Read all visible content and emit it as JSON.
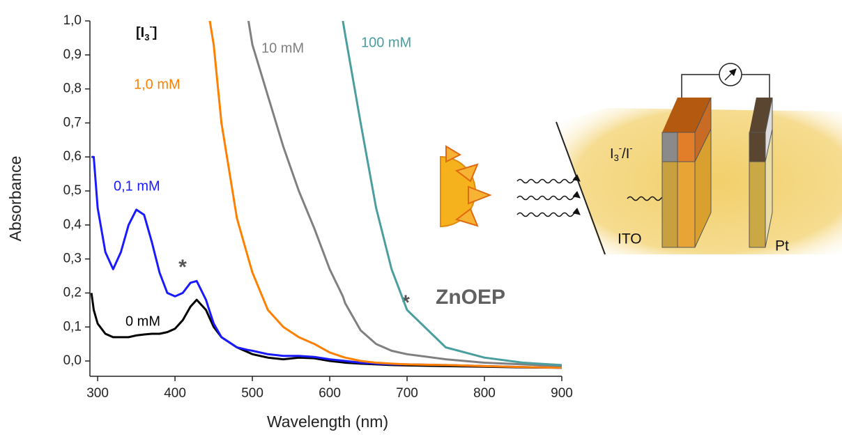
{
  "chart_data": {
    "type": "line",
    "x_label": "Wavelength (nm)",
    "y_label": "Absorbance",
    "legend_title": {
      "base": "[I",
      "sub": "3",
      "sup": "-",
      "end": "]"
    },
    "x": [
      292,
      295,
      300,
      310,
      320,
      330,
      340,
      350,
      360,
      370,
      380,
      390,
      400,
      410,
      420,
      428,
      440,
      445,
      450,
      460,
      480,
      495,
      500,
      520,
      540,
      560,
      580,
      600,
      617,
      620,
      640,
      660,
      680,
      700,
      750,
      800,
      850,
      900
    ],
    "series": [
      {
        "name": "0 mM",
        "color": "#000000",
        "values": [
          0.2,
          0.15,
          0.11,
          0.08,
          0.07,
          0.07,
          0.07,
          0.075,
          0.078,
          0.08,
          0.08,
          0.085,
          0.095,
          0.12,
          0.16,
          0.18,
          0.15,
          0.125,
          0.1,
          0.07,
          0.04,
          0.025,
          0.02,
          0.01,
          0.005,
          0.01,
          0.008,
          0.0,
          -0.004,
          -0.005,
          -0.008,
          -0.01,
          -0.012,
          -0.013,
          -0.015,
          -0.017,
          -0.019,
          -0.02
        ]
      },
      {
        "name": "0,1 mM",
        "color": "#1a1aff",
        "values": [
          0.6,
          0.6,
          0.45,
          0.32,
          0.27,
          0.32,
          0.4,
          0.445,
          0.43,
          0.35,
          0.26,
          0.2,
          0.19,
          0.2,
          0.23,
          0.235,
          0.18,
          0.145,
          0.11,
          0.07,
          0.04,
          0.032,
          0.03,
          0.02,
          0.015,
          0.015,
          0.012,
          0.005,
          0.001,
          0.0,
          -0.005,
          -0.008,
          -0.01,
          -0.01,
          -0.012,
          -0.015,
          -0.018,
          -0.02
        ]
      },
      {
        "name": "1,0 mM",
        "color": "#ff8000",
        "values": [
          null,
          null,
          null,
          null,
          null,
          null,
          null,
          null,
          null,
          null,
          null,
          null,
          null,
          null,
          null,
          null,
          null,
          1.0,
          0.93,
          0.7,
          0.42,
          0.3,
          0.26,
          0.15,
          0.1,
          0.07,
          0.05,
          0.025,
          0.012,
          0.01,
          0.0,
          -0.005,
          -0.008,
          -0.01,
          -0.012,
          -0.015,
          -0.018,
          -0.02
        ]
      },
      {
        "name": "10 mM",
        "color": "#808080",
        "values": [
          null,
          null,
          null,
          null,
          null,
          null,
          null,
          null,
          null,
          null,
          null,
          null,
          null,
          null,
          null,
          null,
          null,
          null,
          null,
          null,
          null,
          1.0,
          0.93,
          0.78,
          0.63,
          0.5,
          0.39,
          0.27,
          0.19,
          0.17,
          0.09,
          0.05,
          0.03,
          0.02,
          0.005,
          -0.005,
          -0.01,
          -0.015
        ]
      },
      {
        "name": "100 mM",
        "color": "#4a9e9e",
        "values": [
          null,
          null,
          null,
          null,
          null,
          null,
          null,
          null,
          null,
          null,
          null,
          null,
          null,
          null,
          null,
          null,
          null,
          null,
          null,
          null,
          null,
          null,
          null,
          null,
          null,
          null,
          null,
          null,
          1.0,
          0.96,
          0.7,
          0.45,
          0.27,
          0.15,
          0.04,
          0.01,
          -0.005,
          -0.012
        ]
      }
    ],
    "xlim": [
      290,
      900
    ],
    "xticks": [
      300,
      400,
      500,
      600,
      700,
      800,
      900
    ],
    "ylim": [
      -0.045,
      1.0
    ],
    "yticks": [
      {
        "value": 0.0,
        "label": "0,0"
      },
      {
        "value": 0.1,
        "label": "0,1"
      },
      {
        "value": 0.2,
        "label": "0,2"
      },
      {
        "value": 0.3,
        "label": "0,3"
      },
      {
        "value": 0.4,
        "label": "0,4"
      },
      {
        "value": 0.5,
        "label": "0,5"
      },
      {
        "value": 0.6,
        "label": "0,6"
      },
      {
        "value": 0.7,
        "label": "0,7"
      },
      {
        "value": 0.8,
        "label": "0,8"
      },
      {
        "value": 0.9,
        "label": "0,9"
      },
      {
        "value": 1.0,
        "label": "1,0"
      }
    ],
    "annotations": [
      "*",
      "*",
      "ZnOEP"
    ],
    "diagram": {
      "electrolyte": {
        "base": "I",
        "sub": "3",
        "sup": "-",
        "end": "/I",
        "sup2": "-"
      },
      "electrode_left": "ITO",
      "electrode_right": "Pt"
    }
  }
}
